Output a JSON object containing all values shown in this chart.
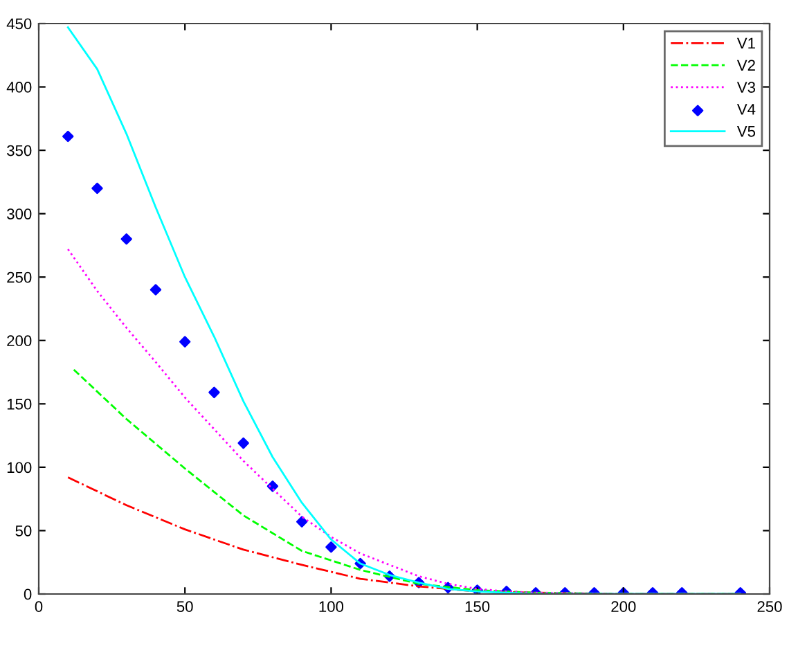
{
  "chart_data": {
    "type": "line",
    "xlim": [
      0,
      250
    ],
    "ylim": [
      0,
      450
    ],
    "xticks": [
      0,
      50,
      100,
      150,
      200,
      250
    ],
    "yticks": [
      0,
      50,
      100,
      150,
      200,
      250,
      300,
      350,
      400,
      450
    ],
    "grid": false,
    "legend": "top right",
    "series": [
      {
        "name": "V1",
        "color": "#ff0000",
        "line_style": "dashdot",
        "x": [
          10,
          30,
          50,
          70,
          90,
          110,
          130,
          150,
          170,
          200,
          240
        ],
        "values": [
          92,
          70,
          51,
          35,
          23,
          12,
          6,
          2,
          1,
          0,
          0
        ]
      },
      {
        "name": "V2",
        "color": "#00ff00",
        "line_style": "dashed",
        "x": [
          12,
          30,
          50,
          70,
          90,
          110,
          130,
          150,
          170,
          200,
          240
        ],
        "values": [
          177,
          138,
          99,
          62,
          34,
          19,
          8,
          3,
          1,
          0,
          0
        ]
      },
      {
        "name": "V3",
        "color": "#ff00ff",
        "line_style": "dotted",
        "x": [
          10,
          20,
          30,
          40,
          50,
          60,
          70,
          80,
          90,
          100,
          110,
          120,
          130,
          140,
          150,
          160,
          170,
          200,
          240
        ],
        "values": [
          272,
          239,
          210,
          183,
          155,
          130,
          105,
          83,
          61,
          45,
          32,
          23,
          14,
          8,
          4,
          2,
          1,
          0,
          0
        ]
      },
      {
        "name": "V4",
        "color": "#0000ff",
        "type": "scatter",
        "marker": "diamond",
        "x": [
          10,
          20,
          30,
          40,
          50,
          60,
          70,
          80,
          90,
          100,
          110,
          120,
          130,
          140,
          150,
          160,
          170,
          180,
          190,
          200,
          210,
          220,
          240
        ],
        "values": [
          361,
          320,
          280,
          240,
          199,
          159,
          119,
          85,
          57,
          37,
          24,
          14,
          9,
          5,
          3,
          2,
          1,
          1,
          1,
          1,
          1,
          1,
          1
        ]
      },
      {
        "name": "V5",
        "color": "#00ffff",
        "line_style": "solid",
        "x": [
          10,
          20,
          30,
          40,
          50,
          60,
          70,
          80,
          90,
          100,
          110,
          120,
          130,
          140,
          150,
          160,
          170,
          200,
          240
        ],
        "values": [
          447,
          414,
          363,
          305,
          250,
          203,
          152,
          108,
          72,
          43,
          24,
          15,
          9,
          4,
          2,
          1,
          0,
          0,
          0
        ]
      }
    ]
  }
}
